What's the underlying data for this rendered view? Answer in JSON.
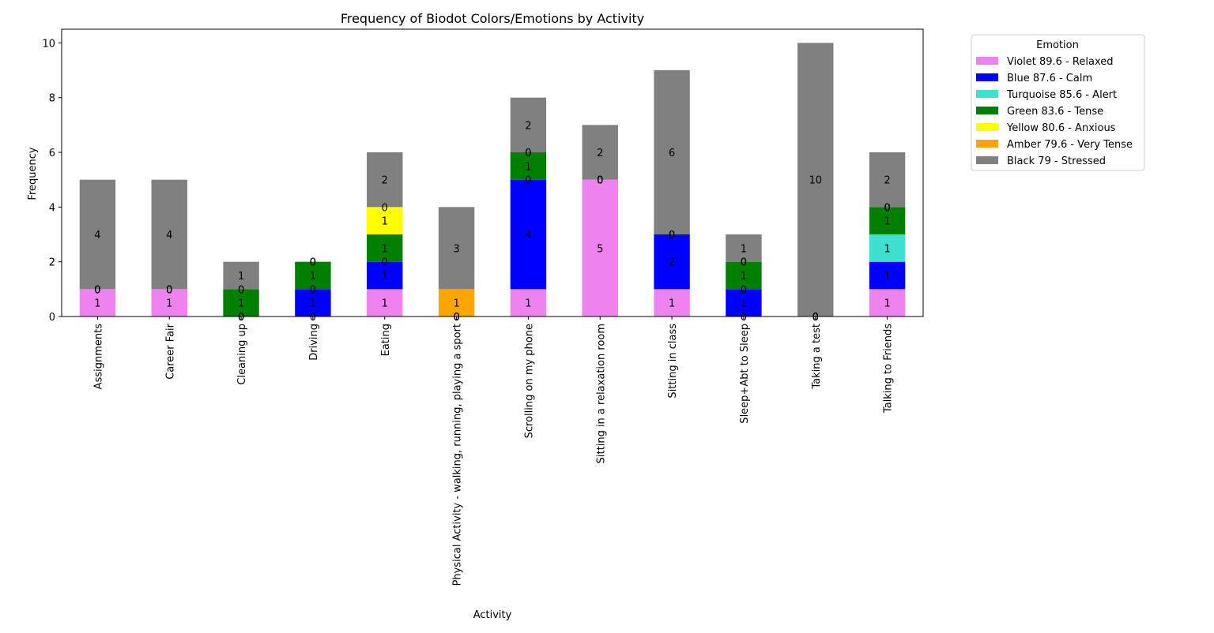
{
  "chart_data": {
    "type": "bar",
    "stacked": true,
    "title": "Frequency of Biodot Colors/Emotions by Activity",
    "xlabel": "Activity",
    "ylabel": "Frequency",
    "ylim": [
      0,
      10.5
    ],
    "yticks": [
      0,
      2,
      4,
      6,
      8,
      10
    ],
    "grid": false,
    "legend": {
      "title": "Emotion",
      "placement": "outside-top-right"
    },
    "categories": [
      "Assignments",
      "Career Fair",
      "Cleaning up",
      "Driving",
      "Eating",
      "Physical Activity - walking, running, playing a sport",
      "Scrolling on my phone",
      "Sitting in a relaxation room",
      "Sitting in class",
      "Sleep+Abt to Sleep",
      "Taking a test",
      "Talking to Friends"
    ],
    "series": [
      {
        "name": "Violet 89.6 - Relaxed",
        "color": "#ee82ee",
        "values": [
          1,
          1,
          0,
          0,
          1,
          0,
          1,
          5,
          1,
          0,
          0,
          1
        ]
      },
      {
        "name": "Blue 87.6 - Calm",
        "color": "#0000ff",
        "values": [
          0,
          0,
          0,
          1,
          1,
          0,
          4,
          0,
          2,
          1,
          0,
          1
        ]
      },
      {
        "name": "Turquoise 85.6 - Alert",
        "color": "#40e0d0",
        "values": [
          0,
          0,
          0,
          0,
          0,
          0,
          0,
          0,
          0,
          0,
          0,
          1
        ]
      },
      {
        "name": "Green 83.6 - Tense",
        "color": "#008000",
        "values": [
          0,
          0,
          1,
          1,
          1,
          0,
          1,
          0,
          0,
          1,
          0,
          1
        ]
      },
      {
        "name": "Yellow 80.6 - Anxious",
        "color": "#ffff00",
        "values": [
          0,
          0,
          0,
          0,
          1,
          0,
          0,
          0,
          0,
          0,
          0,
          0
        ]
      },
      {
        "name": "Amber 79.6 - Very Tense",
        "color": "#ffa500",
        "values": [
          0,
          0,
          0,
          0,
          0,
          1,
          0,
          0,
          0,
          0,
          0,
          0
        ]
      },
      {
        "name": "Black 79 - Stressed",
        "color": "#808080",
        "values": [
          4,
          4,
          1,
          0,
          2,
          3,
          2,
          2,
          6,
          1,
          10,
          2
        ]
      }
    ]
  }
}
